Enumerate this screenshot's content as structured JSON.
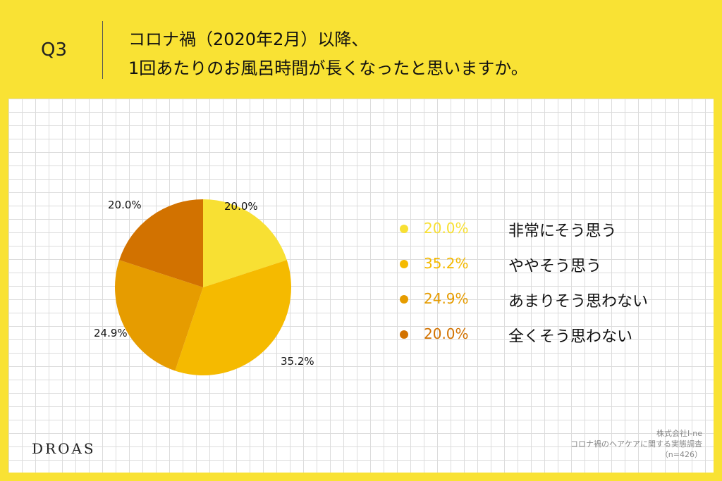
{
  "header": {
    "question_number": "Q3",
    "question_line1": "コロナ禍（2020年2月）以降、",
    "question_line2": "1回あたりのお風呂時間が長くなったと思いますか。"
  },
  "chart_data": {
    "type": "pie",
    "categories": [
      "非常にそう思う",
      "ややそう思う",
      "あまりそう思わない",
      "全くそう思わない"
    ],
    "values": [
      20.0,
      35.2,
      24.9,
      20.0
    ],
    "labels": [
      "20.0%",
      "35.2%",
      "24.9%",
      "20.0%"
    ],
    "colors": [
      "#f8e033",
      "#f5ba00",
      "#e69c00",
      "#d27200"
    ],
    "legend_placement": "right",
    "start_angle": "top, clockwise"
  },
  "legend": [
    {
      "pct": "20.0%",
      "label": "非常にそう思う",
      "color": "#f8e033"
    },
    {
      "pct": "35.2%",
      "label": "ややそう思う",
      "color": "#f5ba00"
    },
    {
      "pct": "24.9%",
      "label": "あまりそう思わない",
      "color": "#e69c00"
    },
    {
      "pct": "20.0%",
      "label": "全くそう思わない",
      "color": "#d27200"
    }
  ],
  "footer": {
    "brand": "DROAS",
    "source_line1": "株式会社I-ne",
    "source_line2": "コロナ禍のヘアケアに関する実態調査",
    "source_line3": "（n=426）"
  }
}
